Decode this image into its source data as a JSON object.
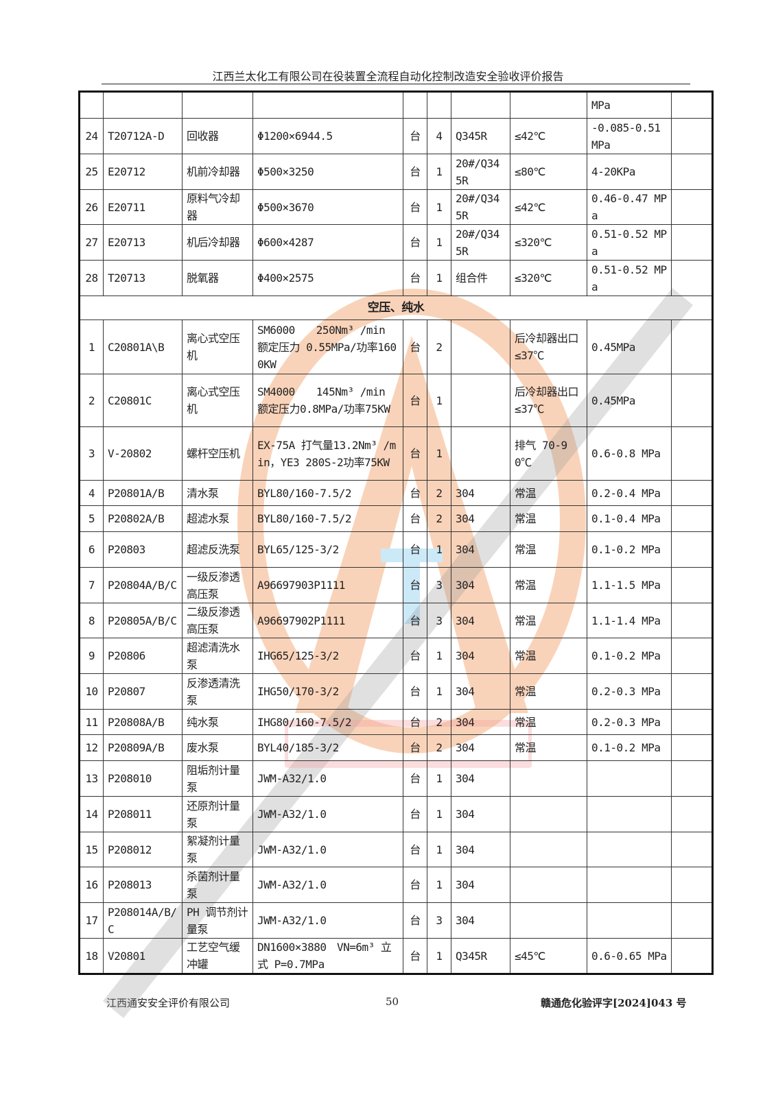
{
  "header": {
    "title": "江西兰太化工有限公司在役装置全流程自动化控制改造安全验收评价报告"
  },
  "table": {
    "top_row": [
      "",
      "",
      "",
      "",
      "",
      "",
      "",
      "",
      "MPa",
      ""
    ],
    "rows_a": [
      {
        "h": 52,
        "cells": [
          "24",
          "T20712A-D",
          "回收器",
          "Φ1200×6944.5",
          "台",
          "4",
          "Q345R",
          "≤42℃",
          "-0.085-0.51 MPa",
          ""
        ]
      },
      {
        "h": 52,
        "cells": [
          "25",
          "E20712",
          "机前冷却器",
          "Φ500×3250",
          "台",
          "1",
          "20#/Q345R",
          "≤80℃",
          "4-20KPa",
          ""
        ]
      },
      {
        "h": 51,
        "cells": [
          "26",
          "E20711",
          "原料气冷却器",
          "Φ500×3670",
          "台",
          "1",
          "20#/Q345R",
          "≤42℃",
          "0.46-0.47 MPa",
          ""
        ]
      },
      {
        "h": 52,
        "cells": [
          "27",
          "E20713",
          "机后冷却器",
          "Φ600×4287",
          "台",
          "1",
          "20#/Q345R",
          "≤320℃",
          "0.51-0.52 MPa",
          ""
        ]
      },
      {
        "h": 52,
        "cells": [
          "28",
          "T20713",
          "脱氧器",
          "Φ400×2575",
          "台",
          "1",
          "组合件",
          "≤320℃",
          "0.51-0.52 MPa",
          ""
        ]
      }
    ],
    "section_title": "空压、纯水",
    "rows_b": [
      {
        "h": 79,
        "cells": [
          "1",
          "C20801A\\B",
          "离心式空压机",
          "SM6000　　250Nm³ /min 额定压力 0.55MPa/功率1600KW",
          "台",
          "2",
          "",
          "后冷却器出口≤37℃",
          "0.45MPa",
          ""
        ]
      },
      {
        "h": 77,
        "cells": [
          "2",
          "C20801C",
          "离心式空压机",
          "SM4000　　145Nm³ /min 额定压力0.8MPa/功率75KW",
          "台",
          "1",
          "",
          "后冷却器出口≤37℃",
          "0.45MPa",
          ""
        ]
      },
      {
        "h": 78,
        "cells": [
          "3",
          "V-20802",
          "螺杆空压机",
          "EX-75A 打气量13.2Nm³ /min，YE3 280S-2功率75KW",
          "台",
          "1",
          "",
          "排气 70-90℃",
          "0.6-0.8 MPa",
          ""
        ]
      },
      {
        "h": 37,
        "cells": [
          "4",
          "P20801A/B",
          "清水泵",
          "BYL80/160-7.5/2",
          "台",
          "2",
          "304",
          "常温",
          "0.2-0.4 MPa",
          ""
        ]
      },
      {
        "h": 38,
        "cells": [
          "5",
          "P20802A/B",
          "超滤水泵",
          "BYL80/160-7.5/2",
          "台",
          "2",
          "304",
          "常温",
          "0.1-0.4 MPa",
          ""
        ]
      },
      {
        "h": 52,
        "cells": [
          "6",
          "P20803",
          "超滤反洗泵",
          "BYL65/125-3/2",
          "台",
          "1",
          "304",
          "常温",
          "0.1-0.2 MPa",
          ""
        ]
      },
      {
        "h": 52,
        "cells": [
          "7",
          "P20804A/B/C",
          "一级反渗透高压泵",
          "A96697903P1111",
          "台",
          "3",
          "304",
          "常温",
          "1.1-1.5 MPa",
          ""
        ]
      },
      {
        "h": 51,
        "cells": [
          "8",
          "P20805A/B/C",
          "二级反渗透高压泵",
          "A96697902P1111",
          "台",
          "3",
          "304",
          "常温",
          "1.1-1.4 MPa",
          ""
        ]
      },
      {
        "h": 52,
        "cells": [
          "9",
          "P20806",
          "超滤清洗水泵",
          "IHG65/125-3/2",
          "台",
          "1",
          "304",
          "常温",
          "0.1-0.2 MPa",
          ""
        ]
      },
      {
        "h": 52,
        "cells": [
          "10",
          "P20807",
          "反渗透清洗泵",
          "IHG50/170-3/2",
          "台",
          "1",
          "304",
          "常温",
          "0.2-0.3 MPa",
          ""
        ]
      },
      {
        "h": 37,
        "cells": [
          "11",
          "P20808A/B",
          "纯水泵",
          "IHG80/160-7.5/2",
          "台",
          "2",
          "304",
          "常温",
          "0.2-0.3 MPa",
          ""
        ]
      },
      {
        "h": 38,
        "cells": [
          "12",
          "P20809A/B",
          "废水泵",
          "BYL40/185-3/2",
          "台",
          "2",
          "304",
          "常温",
          "0.1-0.2 MPa",
          ""
        ]
      },
      {
        "h": 52,
        "cells": [
          "13",
          "P208010",
          "阻垢剂计量泵",
          "JWM-A32/1.0",
          "台",
          "1",
          "304",
          "",
          "",
          ""
        ]
      },
      {
        "h": 52,
        "cells": [
          "14",
          "P208011",
          "还原剂计量泵",
          "JWM-A32/1.0",
          "台",
          "1",
          "304",
          "",
          "",
          ""
        ]
      },
      {
        "h": 51,
        "cells": [
          "15",
          "P208012",
          "絮凝剂计量泵",
          "JWM-A32/1.0",
          "台",
          "1",
          "304",
          "",
          "",
          ""
        ]
      },
      {
        "h": 52,
        "cells": [
          "16",
          "P208013",
          "杀菌剂计量泵",
          "JWM-A32/1.0",
          "台",
          "1",
          "304",
          "",
          "",
          ""
        ]
      },
      {
        "h": 52,
        "cells": [
          "17",
          "P208014A/B/C",
          "PH 调节剂计量泵",
          "JWM-A32/1.0",
          "台",
          "3",
          "304",
          "",
          "",
          ""
        ]
      },
      {
        "h": 52,
        "cells": [
          "18",
          "V20801",
          "工艺空气缓冲罐",
          "DN1600×3880　VN=6m³ 立式 P=0.7MPa",
          "台",
          "1",
          "Q345R",
          "≤45℃",
          "0.6-0.65 MPa",
          ""
        ]
      }
    ]
  },
  "watermark": {
    "diagonal_text": "江西通安安全评价有限公司",
    "stamp_text": "江西通安",
    "logo_letters": "STA",
    "logo_color": "#f3a066",
    "text_color": "#9a9a9a",
    "stamp_color": "#f4a0a0"
  },
  "footer": {
    "company": "江西通安安全评价有限公司",
    "page_number": "50",
    "doc_number": "赣通危化验评字[2024]043 号"
  }
}
